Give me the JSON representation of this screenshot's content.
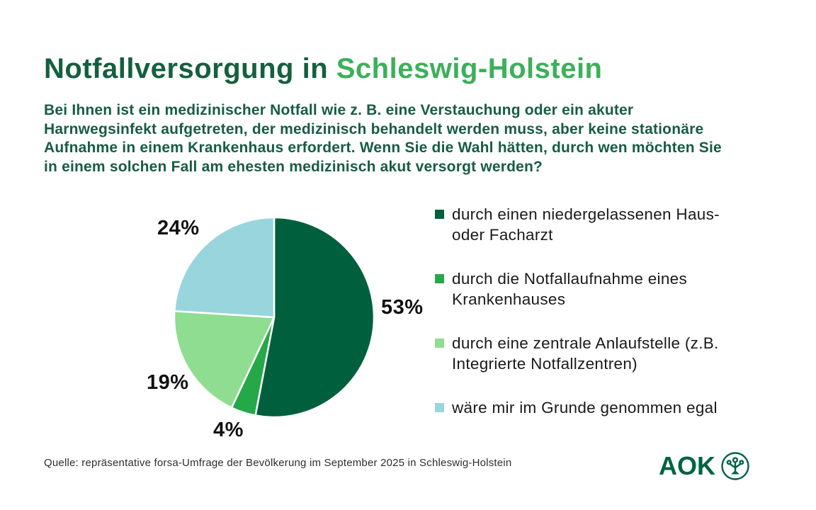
{
  "title": {
    "prefix": "Notfallversorgung in ",
    "highlight": "Schleswig-Holstein"
  },
  "question": "Bei Ihnen ist ein medizinischer Notfall wie z. B. eine Verstauchung oder ein akuter Harnwegsinfekt aufgetreten, der medizinisch behandelt werden muss, aber keine stationäre Aufnahme in einem Krankenhaus erfordert. Wenn Sie die Wahl hätten, durch wen möchten Sie in einem solchen Fall am ehesten medizinisch akut versorgt werden?",
  "chart_data": {
    "type": "pie",
    "categories": [
      "durch einen niedergelassenen Haus- oder Facharzt",
      "durch die Notfallaufnahme eines Krankenhauses",
      "durch eine zentrale Anlaufstelle (z.B. Integrierte Notfallzentren)",
      "wäre mir im Grunde genommen egal"
    ],
    "values": [
      53,
      4,
      19,
      24
    ],
    "value_labels": [
      "53%",
      "4%",
      "19%",
      "24%"
    ],
    "colors": [
      "#00603e",
      "#25a847",
      "#8edd90",
      "#99d5dd"
    ],
    "start_angle_deg": 0,
    "direction": "clockwise",
    "slice_gap_color": "#ffffff",
    "legend_position": "right",
    "title": "Notfallversorgung in Schleswig-Holstein"
  },
  "legend": {
    "items": [
      {
        "label": "durch einen niedergelassenen Haus- oder Facharzt"
      },
      {
        "label": "durch die Notfallaufnahme eines Krankenhauses"
      },
      {
        "label": "durch eine zentrale Anlaufstelle (z.B. Integrierte Notfallzentren)"
      },
      {
        "label": "wäre mir im Grunde genommen egal"
      }
    ]
  },
  "source": "Quelle: repräsentative forsa-Umfrage der Bevölkerung im September 2025 in Schleswig-Holstein",
  "logo": {
    "text": "AOK",
    "icon": "aok-tree-icon",
    "color": "#006341"
  },
  "colors": {
    "title_dark": "#155f40",
    "title_highlight": "#3cb05a",
    "question_text": "#175c43",
    "legend_text": "#1a1a1a",
    "background": "#ffffff"
  }
}
